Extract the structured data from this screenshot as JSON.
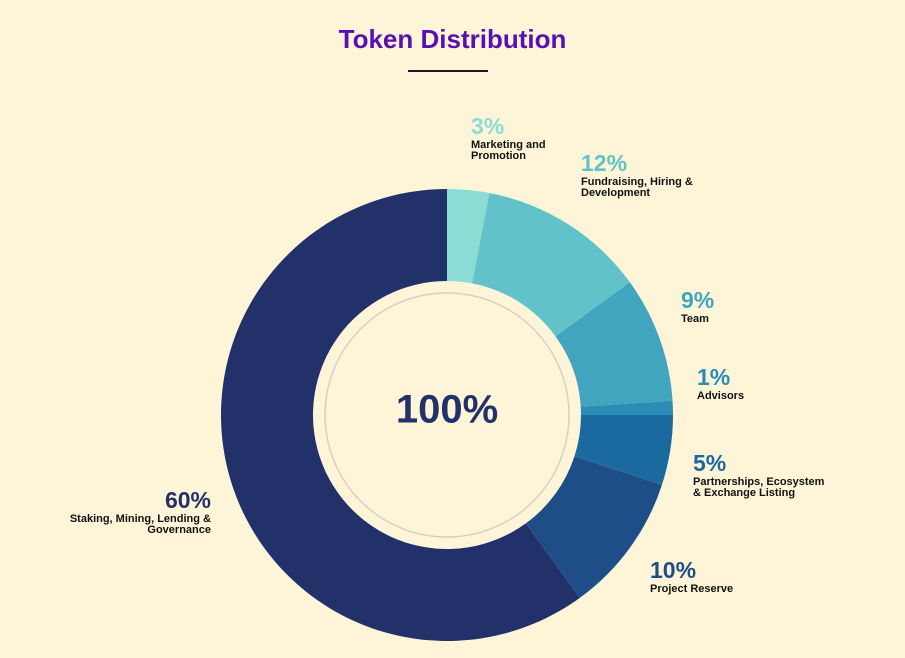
{
  "chart_data": {
    "type": "pie",
    "title": "Token Distribution",
    "center_label": "100%",
    "categories": [
      "Marketing and Promotion",
      "Fundraising, Hiring & Development",
      "Team",
      "Advisors",
      "Partnerships, Ecosystem & Exchange Listing",
      "Project Reserve",
      "Staking, Mining, Lending & Governance"
    ],
    "values": [
      3,
      12,
      9,
      1,
      5,
      10,
      60
    ],
    "value_labels": [
      "3%",
      "12%",
      "9%",
      "1%",
      "5%",
      "10%",
      "60%"
    ],
    "colors": [
      "#8bdcd5",
      "#62c2ca",
      "#42a5c0",
      "#2b8db6",
      "#1a6aa0",
      "#1d4e88",
      "#23316b"
    ]
  }
}
